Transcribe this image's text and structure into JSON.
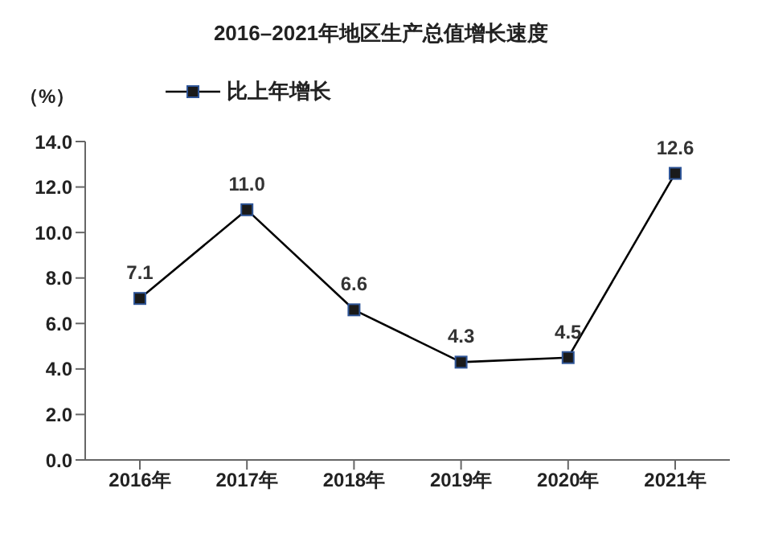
{
  "chart_data": {
    "type": "line",
    "title": "2016–2021年地区生产总值增长速度",
    "ylabel": "（%）",
    "categories": [
      "2016年",
      "2017年",
      "2018年",
      "2019年",
      "2020年",
      "2021年"
    ],
    "series": [
      {
        "name": "比上年增长",
        "color": "#000000",
        "values": [
          7.1,
          11.0,
          6.6,
          4.3,
          4.5,
          12.6
        ],
        "value_labels": [
          "7.1",
          "11.0",
          "6.6",
          "4.3",
          "4.5",
          "12.6"
        ]
      }
    ],
    "ylim": [
      0,
      14
    ],
    "yticks": [
      {
        "value": 0,
        "label": "0.0"
      },
      {
        "value": 2,
        "label": "2.0"
      },
      {
        "value": 4,
        "label": "4.0"
      },
      {
        "value": 6,
        "label": "6.0"
      },
      {
        "value": 8,
        "label": "8.0"
      },
      {
        "value": 10,
        "label": "10.0"
      },
      {
        "value": 12,
        "label": "12.0"
      },
      {
        "value": 14,
        "label": "14.0"
      }
    ],
    "grid": false,
    "legend": "top left",
    "marker": "square",
    "line_style": "solid"
  }
}
